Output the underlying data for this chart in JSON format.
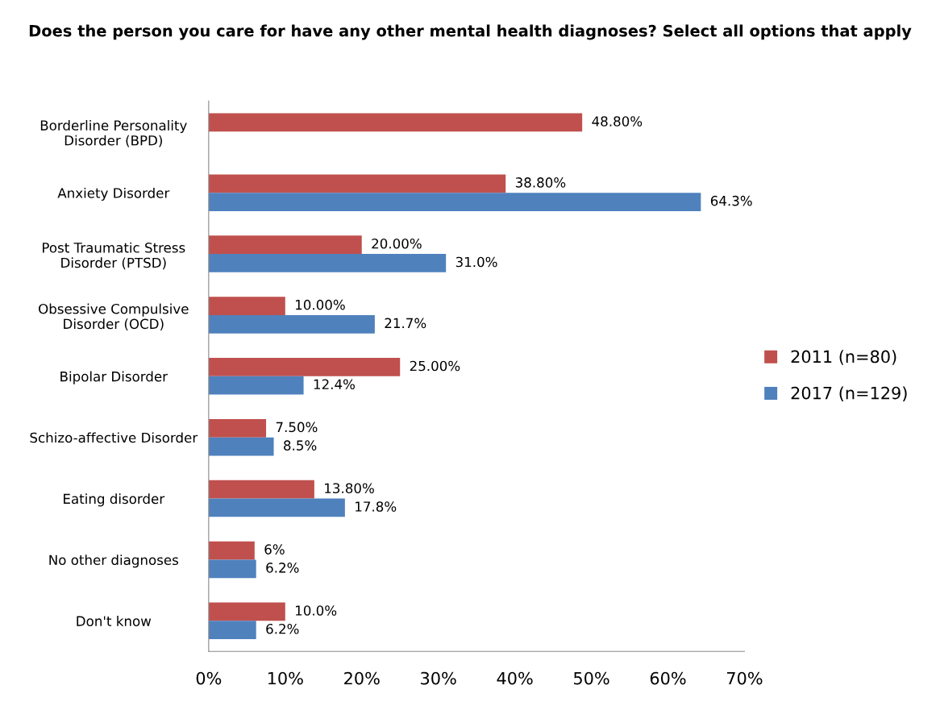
{
  "chart_data": {
    "type": "bar",
    "orientation": "horizontal",
    "title": "Does the person you care for have any other mental health diagnoses? Select all options that apply",
    "categories": [
      "Borderline Personality\nDisorder (BPD)",
      "Anxiety Disorder",
      "Post Traumatic Stress\nDisorder (PTSD)",
      "Obsessive Compulsive\nDisorder (OCD)",
      "Bipolar Disorder",
      "Schizo-affective Disorder",
      "Eating disorder",
      "No other diagnoses",
      "Don't know"
    ],
    "series": [
      {
        "name": "2011 (n=80)",
        "color": "#c0504d",
        "values": [
          48.8,
          38.8,
          20.0,
          10.0,
          25.0,
          7.5,
          13.8,
          6,
          10.0
        ],
        "value_labels": [
          "48.80%",
          "38.80%",
          "20.00%",
          "10.00%",
          "25.00%",
          "7.50%",
          "13.80%",
          "6%",
          "10.0%"
        ]
      },
      {
        "name": "2017 (n=129)",
        "color": "#4f81bd",
        "values": [
          null,
          64.3,
          31.0,
          21.7,
          12.4,
          8.5,
          17.8,
          6.2,
          6.2
        ],
        "value_labels": [
          null,
          "64.3%",
          "31.0%",
          "21.7%",
          "12.4%",
          "8.5%",
          "17.8%",
          "6.2%",
          "6.2%"
        ]
      }
    ],
    "xlim": [
      0,
      70
    ],
    "xticks": [
      {
        "value": 0,
        "label": "0%"
      },
      {
        "value": 10,
        "label": "10%"
      },
      {
        "value": 20,
        "label": "20%"
      },
      {
        "value": 30,
        "label": "30%"
      },
      {
        "value": 40,
        "label": "40%"
      },
      {
        "value": 50,
        "label": "50%"
      },
      {
        "value": 60,
        "label": "60%"
      },
      {
        "value": 70,
        "label": "70%"
      }
    ],
    "legend": "right"
  }
}
